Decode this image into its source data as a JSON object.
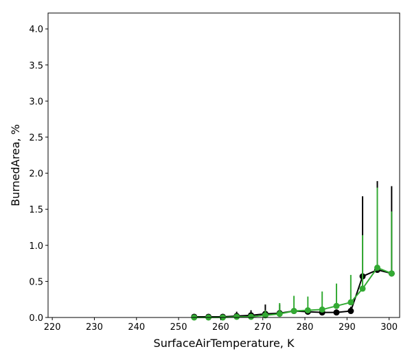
{
  "chart_data": {
    "type": "line",
    "title": "",
    "xlabel": "SurfaceAirTemperature,  K",
    "ylabel": "BurnedArea,  %",
    "xlim": [
      219,
      302.5
    ],
    "ylim": [
      0,
      4.22
    ],
    "xticks": [
      220,
      230,
      240,
      250,
      260,
      270,
      280,
      290,
      300
    ],
    "xtick_labels": [
      "220",
      "230",
      "240",
      "250",
      "260",
      "270",
      "280",
      "290",
      "300"
    ],
    "yticks": [
      0.0,
      0.5,
      1.0,
      1.5,
      2.0,
      2.5,
      3.0,
      3.5,
      4.0
    ],
    "ytick_labels": [
      "0.0",
      "0.5",
      "1.0",
      "1.5",
      "2.0",
      "2.5",
      "3.0",
      "3.5",
      "4.0"
    ],
    "grid": false,
    "legend": "none",
    "series": [
      {
        "color": "#000000",
        "x": [
          253.7,
          257.1,
          260.5,
          263.8,
          267.2,
          270.6,
          274.0,
          277.4,
          280.7,
          284.1,
          287.5,
          290.9,
          293.7,
          297.2,
          300.6
        ],
        "y": [
          0.01,
          0.01,
          0.01,
          0.02,
          0.03,
          0.05,
          0.06,
          0.09,
          0.08,
          0.07,
          0.07,
          0.09,
          0.57,
          0.66,
          0.61
        ],
        "yerr_upper": [
          0.01,
          0.01,
          0.02,
          0.08,
          0.1,
          0.18,
          0.18,
          0.1,
          0.1,
          0.1,
          0.1,
          0.15,
          1.68,
          1.89,
          1.82
        ]
      },
      {
        "color": "#33aa33",
        "x": [
          253.7,
          257.1,
          260.5,
          263.8,
          267.2,
          270.6,
          274.0,
          277.4,
          280.7,
          284.1,
          287.5,
          290.9,
          293.7,
          297.2,
          300.6
        ],
        "y": [
          0.0,
          0.0,
          0.0,
          0.01,
          0.01,
          0.03,
          0.05,
          0.09,
          0.1,
          0.11,
          0.16,
          0.21,
          0.4,
          0.69,
          0.61
        ],
        "yerr_upper": [
          0.0,
          0.0,
          0.01,
          0.03,
          0.05,
          0.1,
          0.2,
          0.3,
          0.29,
          0.36,
          0.47,
          0.59,
          1.14,
          1.8,
          1.47
        ]
      }
    ]
  }
}
